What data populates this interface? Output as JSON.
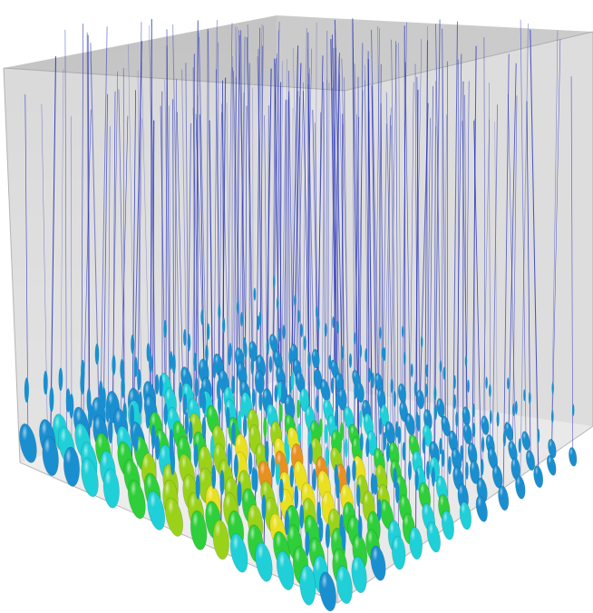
{
  "visualization": {
    "background_color": "#ffffff",
    "volume_box": {
      "face_color": "#c8c8c8",
      "top_face_color": "#b4b4b4",
      "edge_color": "#9a9a9a"
    },
    "glyph_colormap": [
      "#1a1fb0",
      "#1a8fd0",
      "#1fd0d8",
      "#2ecf3a",
      "#9ad21a",
      "#e8e020",
      "#e89020",
      "#d01818"
    ],
    "glyph_shape": "ellipsoid",
    "field_line_color": "#1f2bb8"
  }
}
